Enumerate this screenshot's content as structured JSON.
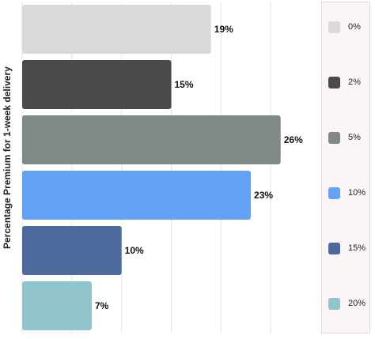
{
  "chart_data": {
    "type": "bar",
    "orientation": "horizontal",
    "ylabel": "Percentage Premium for 1-week delivery",
    "xlabel": "",
    "xlim": [
      0,
      30
    ],
    "grid": true,
    "legend_position": "right",
    "categories": [
      "0%",
      "2%",
      "5%",
      "10%",
      "15%",
      "20%"
    ],
    "values": [
      19,
      15,
      26,
      23,
      10,
      7
    ],
    "value_labels": [
      "19%",
      "15%",
      "26%",
      "23%",
      "10%",
      "7%"
    ],
    "colors": [
      "#d9d9d9",
      "#4a4a4a",
      "#7f8a87",
      "#63a2f5",
      "#4c6b9c",
      "#8fc5cb"
    ]
  }
}
